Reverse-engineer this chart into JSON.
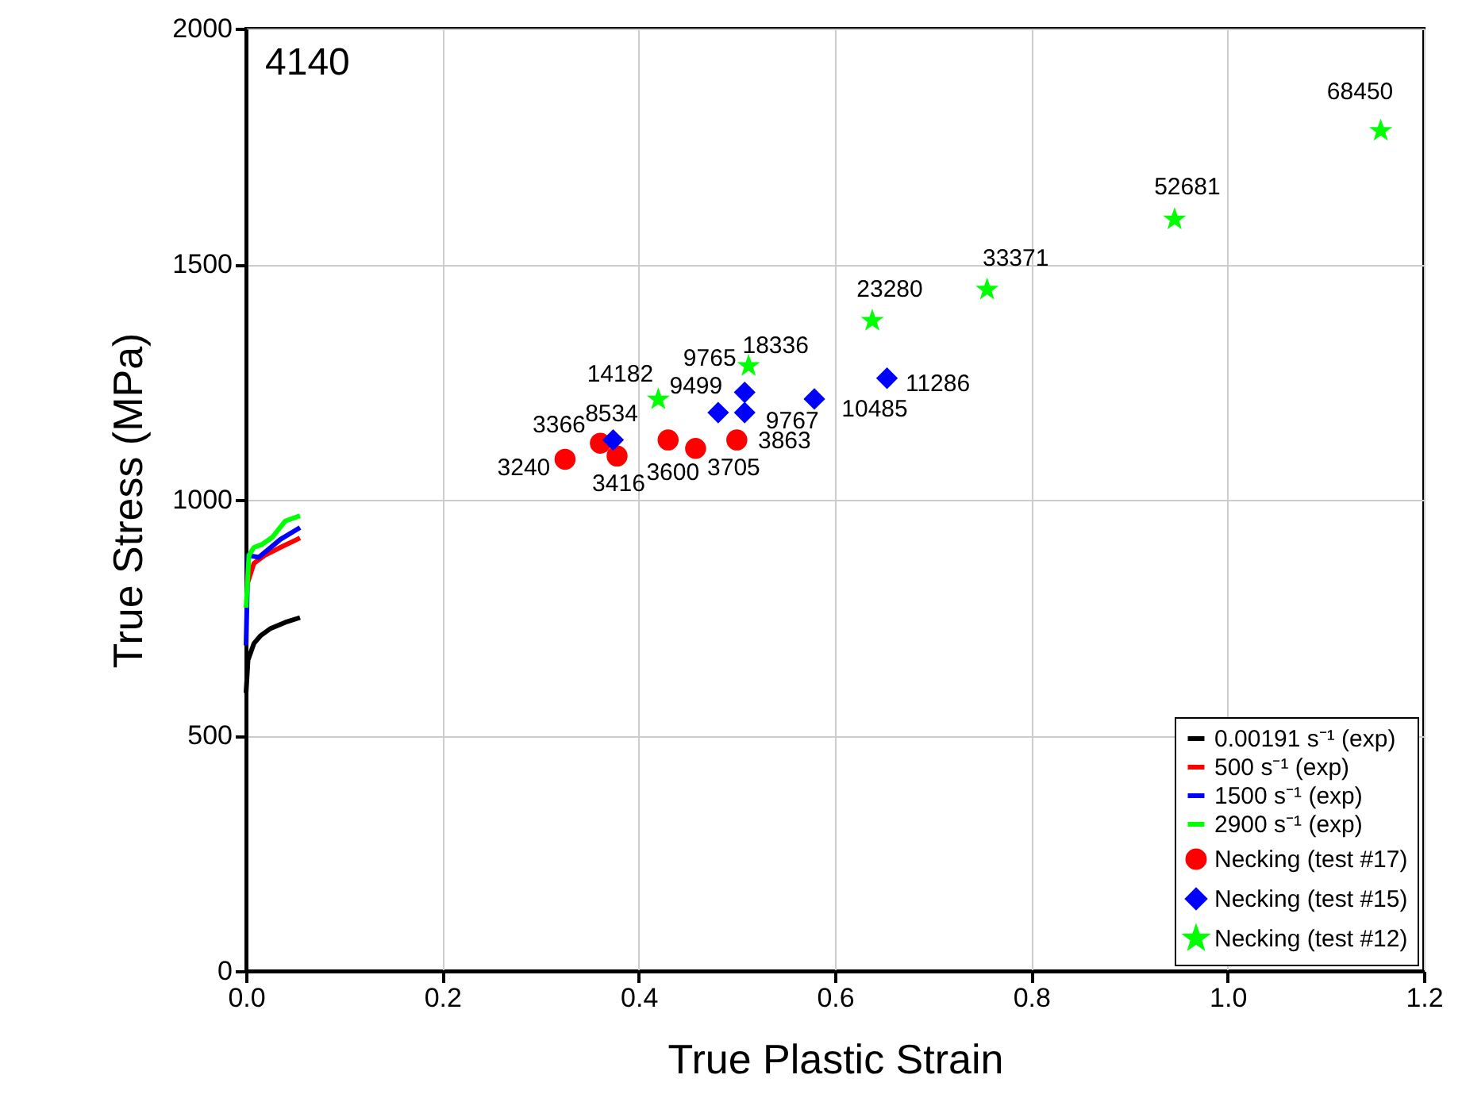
{
  "chart_data": {
    "type": "line",
    "xlabel": "True Plastic Strain",
    "ylabel": "True Stress (MPa)",
    "annotations": [
      "4140",
      {
        "text": "3240",
        "x": 0.325,
        "y": 1086
      },
      {
        "text": "3366",
        "x": 0.361,
        "y": 1120
      },
      {
        "text": "3416",
        "x": 0.378,
        "y": 1093
      },
      {
        "text": "3600",
        "x": 0.43,
        "y": 1127
      },
      {
        "text": "3705",
        "x": 0.458,
        "y": 1109
      },
      {
        "text": "3863",
        "x": 0.5,
        "y": 1127
      },
      {
        "text": "8534",
        "x": 0.374,
        "y": 1127
      },
      {
        "text": "9499",
        "x": 0.481,
        "y": 1185
      },
      {
        "text": "9767",
        "x": 0.508,
        "y": 1185
      },
      {
        "text": "9765",
        "x": 0.508,
        "y": 1228
      },
      {
        "text": "10485",
        "x": 0.579,
        "y": 1214
      },
      {
        "text": "11286",
        "x": 0.653,
        "y": 1258
      },
      {
        "text": "14182",
        "x": 0.42,
        "y": 1213
      },
      {
        "text": "18336",
        "x": 0.512,
        "y": 1284
      },
      {
        "text": "23280",
        "x": 0.638,
        "y": 1380
      },
      {
        "text": "33371",
        "x": 0.755,
        "y": 1446
      },
      {
        "text": "52681",
        "x": 0.946,
        "y": 1595
      },
      {
        "text": "68450",
        "x": 1.156,
        "y": 1783
      }
    ],
    "xlim": [
      0,
      1.2
    ],
    "ylim": [
      0,
      2000
    ],
    "xticks": [
      {
        "value": 0,
        "label": "0.0"
      },
      {
        "value": 0.2,
        "label": "0.2"
      },
      {
        "value": 0.4,
        "label": "0.4"
      },
      {
        "value": 0.6,
        "label": "0.6"
      },
      {
        "value": 0.8,
        "label": "0.8"
      },
      {
        "value": 1.0,
        "label": "1.0"
      },
      {
        "value": 1.2,
        "label": "1.2"
      }
    ],
    "yticks": [
      0,
      500,
      1000,
      1500,
      2000
    ],
    "grid": true,
    "legend": "bottom right",
    "series": [
      {
        "name": "0.00191 s⁻¹ (exp)",
        "type": "line",
        "color": "#000000",
        "x": [
          0,
          0.002,
          0.008,
          0.015,
          0.025,
          0.04,
          0.055
        ],
        "values": [
          590,
          660,
          695,
          712,
          727,
          740,
          750
        ]
      },
      {
        "name": "500 s⁻¹ (exp)",
        "type": "line",
        "color": "#ff0000",
        "x": [
          0.002,
          0.008,
          0.019,
          0.035,
          0.055
        ],
        "values": [
          826,
          865,
          882,
          899,
          919
        ]
      },
      {
        "name": "1500 s⁻¹ (exp)",
        "type": "line",
        "color": "#0000ff",
        "x": [
          0,
          0.002,
          0.013,
          0.035,
          0.055
        ],
        "values": [
          691,
          882,
          878,
          916,
          941
        ]
      },
      {
        "name": "2900 s⁻¹ (exp)",
        "type": "line",
        "color": "#00ff00",
        "x": [
          0,
          0.003,
          0.008,
          0.016,
          0.027,
          0.04,
          0.055
        ],
        "values": [
          771,
          882,
          899,
          905,
          921,
          955,
          966
        ]
      },
      {
        "name": "Necking (test #17)",
        "type": "scatter",
        "marker": "circle",
        "color": "#ff0000",
        "x": [
          0.325,
          0.361,
          0.378,
          0.43,
          0.458,
          0.5
        ],
        "values": [
          1086,
          1120,
          1093,
          1127,
          1109,
          1127
        ]
      },
      {
        "name": "Necking (test #15)",
        "type": "scatter",
        "marker": "diamond",
        "color": "#0000ff",
        "x": [
          0.374,
          0.481,
          0.508,
          0.508,
          0.579,
          0.653
        ],
        "values": [
          1127,
          1185,
          1185,
          1228,
          1214,
          1258
        ]
      },
      {
        "name": "Necking (test #12)",
        "type": "scatter",
        "marker": "star",
        "color": "#00ff00",
        "x": [
          0.42,
          0.512,
          0.638,
          0.755,
          0.946,
          1.156
        ],
        "values": [
          1213,
          1284,
          1380,
          1446,
          1595,
          1783
        ]
      }
    ]
  }
}
